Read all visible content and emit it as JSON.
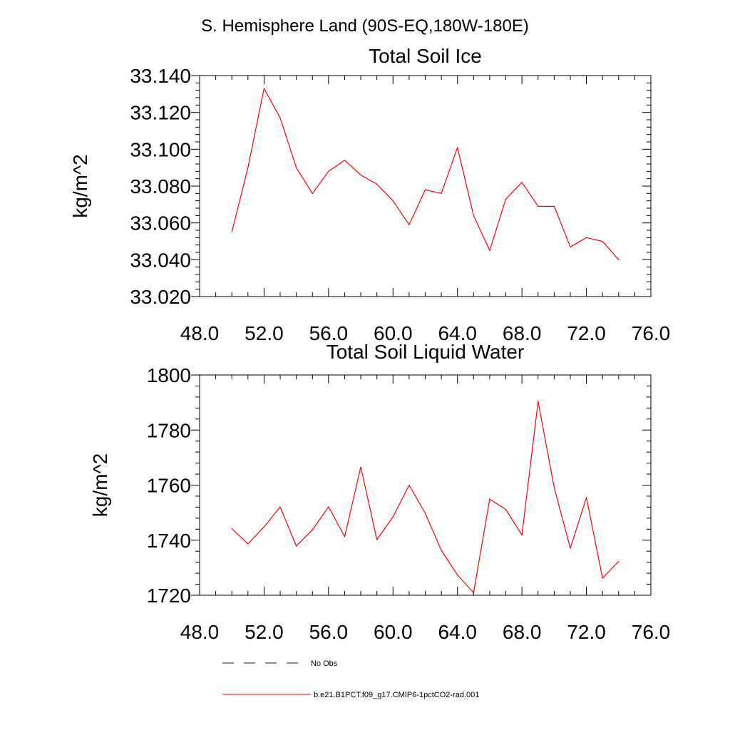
{
  "figure_title": "S. Hemisphere Land (90S-EQ,180W-180E)",
  "legend": [
    {
      "label": "No Obs",
      "color": "#1a1a66",
      "style": "dashed"
    },
    {
      "label": "b.e21.B1PCT.f09_g17.CMIP6-1pctCO2-rad.001",
      "color": "#ff0000",
      "style": "solid"
    }
  ],
  "chart_data": [
    {
      "type": "line",
      "title": "Total Soil Ice",
      "xlabel": "",
      "ylabel": "kg/m^2",
      "xlim": [
        48,
        76
      ],
      "ylim": [
        33.02,
        33.14
      ],
      "xticks": [
        48,
        52,
        56,
        60,
        64,
        68,
        72,
        76
      ],
      "xtick_labels": [
        "48.0",
        "52.0",
        "56.0",
        "60.0",
        "64.0",
        "68.0",
        "72.0",
        "76.0"
      ],
      "yticks": [
        33.02,
        33.04,
        33.06,
        33.08,
        33.1,
        33.12,
        33.14
      ],
      "ytick_labels": [
        "33.020",
        "33.040",
        "33.060",
        "33.080",
        "33.100",
        "33.120",
        "33.140"
      ],
      "series": [
        {
          "name": "b.e21.B1PCT.f09_g17.CMIP6-1pctCO2-rad.001",
          "color": "#ff0000",
          "x": [
            50,
            51,
            52,
            53,
            54,
            55,
            56,
            57,
            58,
            59,
            60,
            61,
            62,
            63,
            64,
            65,
            66,
            67,
            68,
            69,
            70,
            71,
            72,
            73,
            74
          ],
          "y": [
            33.055,
            33.09,
            33.133,
            33.117,
            33.09,
            33.076,
            33.088,
            33.094,
            33.086,
            33.081,
            33.072,
            33.059,
            33.078,
            33.076,
            33.101,
            33.064,
            33.045,
            33.073,
            33.082,
            33.069,
            33.069,
            33.047,
            33.052,
            33.05,
            33.04
          ]
        }
      ]
    },
    {
      "type": "line",
      "title": "Total Soil Liquid Water",
      "xlabel": "",
      "ylabel": "kg/m^2",
      "xlim": [
        48,
        76
      ],
      "ylim": [
        1720,
        1800
      ],
      "xticks": [
        48,
        52,
        56,
        60,
        64,
        68,
        72,
        76
      ],
      "xtick_labels": [
        "48.0",
        "52.0",
        "56.0",
        "60.0",
        "64.0",
        "68.0",
        "72.0",
        "76.0"
      ],
      "yticks": [
        1720,
        1740,
        1760,
        1780,
        1800
      ],
      "ytick_labels": [
        "1720",
        "1740",
        "1760",
        "1780",
        "1800"
      ],
      "series": [
        {
          "name": "b.e21.B1PCT.f09_g17.CMIP6-1pctCO2-rad.001",
          "color": "#ff0000",
          "x": [
            50,
            51,
            52,
            53,
            54,
            55,
            56,
            57,
            58,
            59,
            60,
            61,
            62,
            63,
            64,
            65,
            66,
            67,
            68,
            69,
            70,
            71,
            72,
            73,
            74
          ],
          "y": [
            1744.2,
            1738.7,
            1744.8,
            1752.1,
            1737.9,
            1743.8,
            1752.1,
            1741.3,
            1766.6,
            1740.2,
            1748.5,
            1760.0,
            1749.8,
            1736.3,
            1727.4,
            1720.9,
            1754.9,
            1751.2,
            1741.9,
            1790.4,
            1759.1,
            1737.1,
            1755.5,
            1726.2,
            1732.3
          ]
        }
      ]
    }
  ]
}
